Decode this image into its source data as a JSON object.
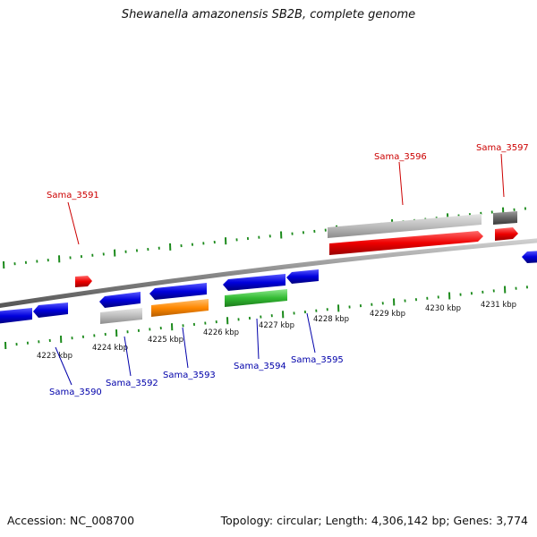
{
  "title": "Shewanella amazonensis SB2B, complete genome",
  "footer": {
    "accession": "Accession: NC_008700",
    "info": "Topology: circular; Length: 4,306,142 bp; Genes: 3,774"
  },
  "colors": {
    "backbone": "#8a8a8a",
    "tick": "#1b8a1b",
    "forward_label": "#cc0000",
    "reverse_label": "#0000aa",
    "cds_forward": "#ee0000",
    "cds_reverse": "#0000dd",
    "rna_grey": "#bbbbbb",
    "dark_grey": "#666666",
    "orange": "#ff8800",
    "green": "#33bb33"
  },
  "scale_labels": [
    "4223 kbp",
    "4224 kbp",
    "4225 kbp",
    "4226 kbp",
    "4227 kbp",
    "4228 kbp",
    "4229 kbp",
    "4230 kbp",
    "4231 kbp"
  ],
  "gene_labels_forward": [
    "Sama_3591",
    "Sama_3596",
    "Sama_3597"
  ],
  "gene_labels_reverse": [
    "Sama_3590",
    "Sama_3592",
    "Sama_3593",
    "Sama_3594",
    "Sama_3595"
  ]
}
